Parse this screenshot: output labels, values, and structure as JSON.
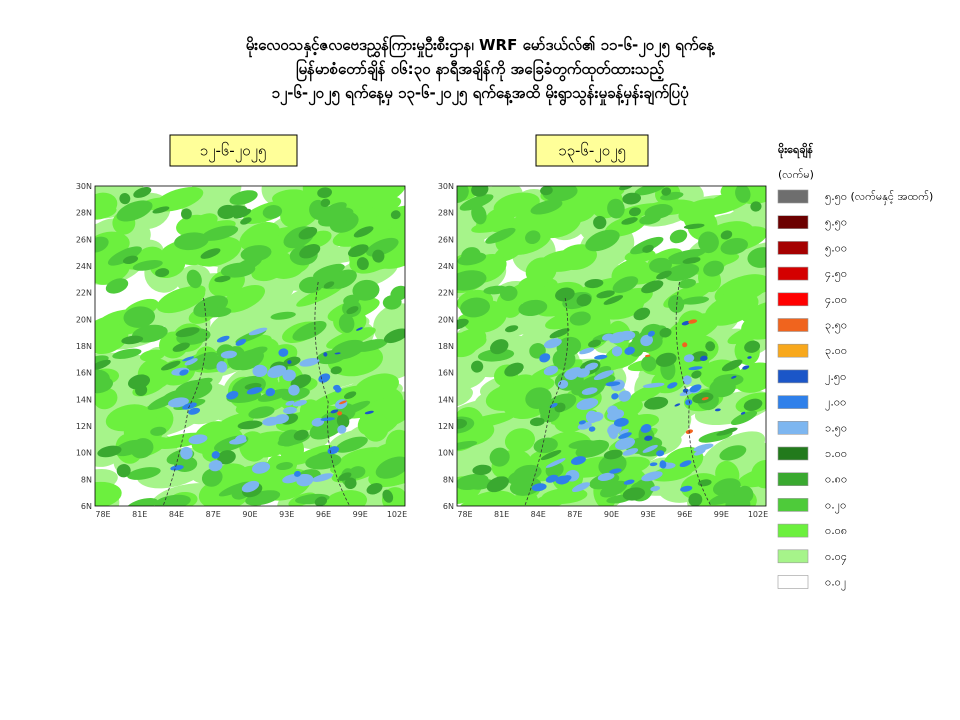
{
  "header": {
    "title_lines": [
      "မိုးလေဝသနှင့်ဇလဗေဒညွှန်ကြားမှုဦးစီးဌာန၊ WRF မော်ဒယ်လ်၏ ၁၁-၆-၂၀၂၅ ရက်နေ့",
      "မြန်မာစံတော်ချိန် ၀၆:၃၀ နာရီအချိန်ကို အခြေခံတွက်ထုတ်ထားသည့်",
      "၁၂-၆-၂၀၂၅ ရက်နေ့မှ ၁၃-၆-၂၀၂၅ ရက်နေ့အထိ မိုးရွာသွန်းမှုခန့်မှန်းချက်ပြပုံ"
    ]
  },
  "maps": [
    {
      "label": "၁၂-၆-၂၀၂၅"
    },
    {
      "label": "၁၃-၆-၂၀၂၅"
    }
  ],
  "axes": {
    "lat_labels": [
      "30N",
      "28N",
      "26N",
      "24N",
      "22N",
      "20N",
      "18N",
      "16N",
      "14N",
      "12N",
      "10N",
      "8N",
      "6N"
    ],
    "lon_labels": [
      "78E",
      "81E",
      "84E",
      "87E",
      "90E",
      "93E",
      "96E",
      "99E",
      "102E"
    ]
  },
  "legend": {
    "title": "မိုးရေချိန်",
    "unit": "(လက်မ)",
    "items": [
      {
        "label": "၅.၅၀ (လက်မနှင့် အထက်)",
        "color": "#6e6e6e"
      },
      {
        "label": "၅.၅၀",
        "color": "#6b0000"
      },
      {
        "label": "၅.၀၀",
        "color": "#a50000"
      },
      {
        "label": "၄.၅၀",
        "color": "#d40000"
      },
      {
        "label": "၄.၀၀",
        "color": "#ff0000"
      },
      {
        "label": "၃.၅၀",
        "color": "#f0641e"
      },
      {
        "label": "၃.၀၀",
        "color": "#f8a81c"
      },
      {
        "label": "၂.၅၀",
        "color": "#1b56c8"
      },
      {
        "label": "၂.၀၀",
        "color": "#2f80ea"
      },
      {
        "label": "၁.၅၀",
        "color": "#7db6f0"
      },
      {
        "label": "၁.၀၀",
        "color": "#227a1c"
      },
      {
        "label": "၀.၈၀",
        "color": "#3aa930"
      },
      {
        "label": "၀.၂၀",
        "color": "#4ecb3a"
      },
      {
        "label": "၀.၀၈",
        "color": "#6cf03e"
      },
      {
        "label": "၀.၀၄",
        "color": "#a6f48a"
      },
      {
        "label": "၀.၀၂",
        "color": "#ffffff"
      }
    ]
  }
}
